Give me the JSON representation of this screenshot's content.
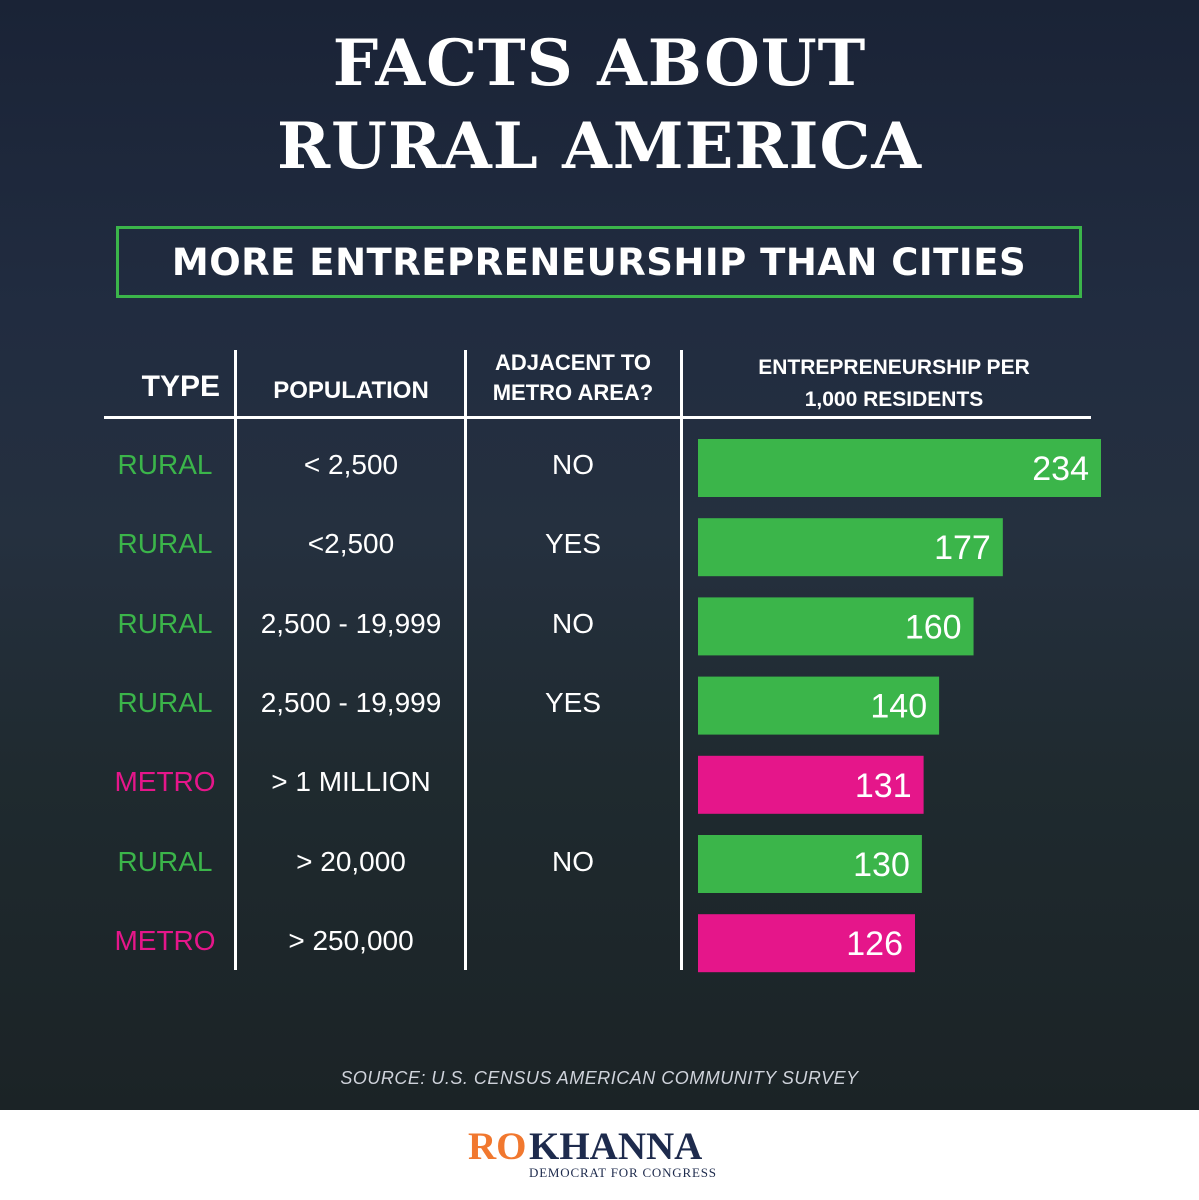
{
  "title_line_1": "FACTS ABOUT",
  "title_line_2": "RURAL AMERICA",
  "subtitle": "MORE ENTREPRENEURSHIP THAN CITIES",
  "headers": {
    "type": "TYPE",
    "population": "POPULATION",
    "adjacent_line_1": "ADJACENT TO",
    "adjacent_line_2": "METRO AREA?",
    "value_line_1": "ENTREPRENEURSHIP PER",
    "value_line_2": "1,000 RESIDENTS"
  },
  "colors": {
    "rural": "#3bb54a",
    "metro": "#e5168a",
    "accent_box": "#3bb54a",
    "logo_ro": "#f1782f",
    "logo_khanna": "#1e2b4d"
  },
  "rows": [
    {
      "type": "RURAL",
      "population": "< 2,500",
      "adjacent": "NO"
    },
    {
      "type": "RURAL",
      "population": "<2,500",
      "adjacent": "YES"
    },
    {
      "type": "RURAL",
      "population": "2,500 - 19,999",
      "adjacent": "NO"
    },
    {
      "type": "RURAL",
      "population": "2,500 - 19,999",
      "adjacent": "YES"
    },
    {
      "type": "METRO",
      "population": "> 1 MILLION",
      "adjacent": ""
    },
    {
      "type": "RURAL",
      "population": "> 20,000",
      "adjacent": "NO"
    },
    {
      "type": "METRO",
      "population": "> 250,000",
      "adjacent": ""
    }
  ],
  "chart_data": {
    "type": "bar",
    "orientation": "horizontal",
    "title": "MORE ENTREPRENEURSHIP THAN CITIES",
    "value_label": "ENTREPRENEURSHIP PER 1,000 RESIDENTS",
    "categories": [
      "RURAL < 2,500 NO",
      "RURAL <2,500 YES",
      "RURAL 2,500 - 19,999 NO",
      "RURAL 2,500 - 19,999 YES",
      "METRO > 1 MILLION",
      "RURAL > 20,000 NO",
      "METRO > 250,000"
    ],
    "values": [
      234,
      177,
      160,
      140,
      131,
      130,
      126
    ],
    "value_labels": [
      "234",
      "177",
      "160",
      "140",
      "131",
      "130",
      "126"
    ],
    "groups": [
      "RURAL",
      "RURAL",
      "RURAL",
      "RURAL",
      "METRO",
      "RURAL",
      "METRO"
    ],
    "xlim": [
      0,
      234
    ]
  },
  "source": "SOURCE: U.S. CENSUS AMERICAN COMMUNITY SURVEY",
  "logo": {
    "ro": "RO",
    "khanna": "KHANNA",
    "tagline": "DEMOCRAT FOR CONGRESS"
  }
}
